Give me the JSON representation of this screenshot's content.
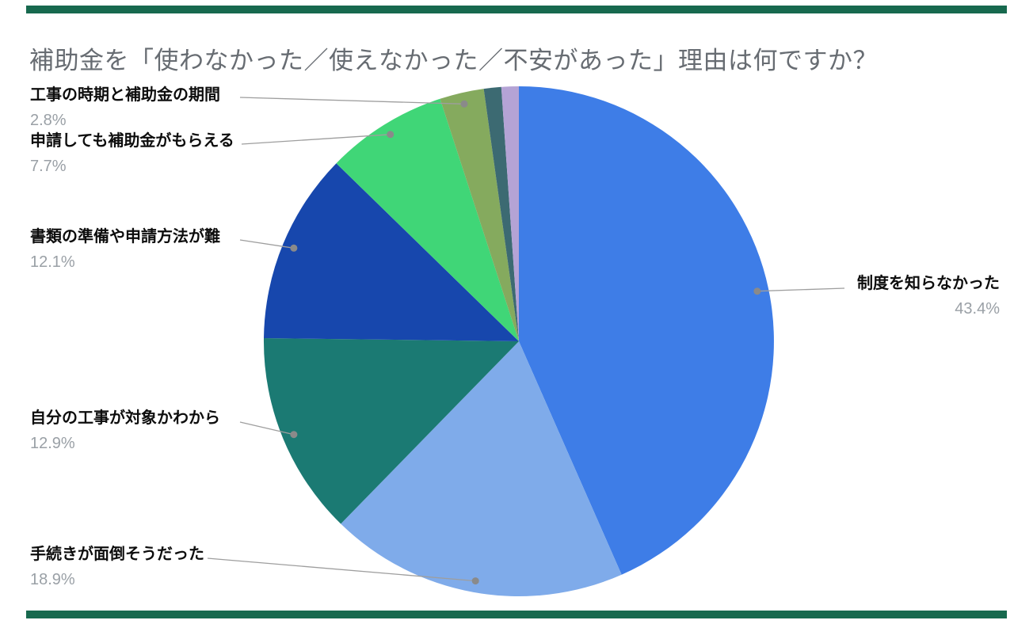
{
  "page": {
    "accent_bar_color": "#17694e",
    "background_color": "#ffffff"
  },
  "chart_data": {
    "type": "pie",
    "title": "補助金を「使わなかった／使えなかった／不安があった」理由は何ですか？",
    "title_color": "#676c72",
    "legend_position": "callout-labels",
    "start_angle_deg": 0,
    "callout_line_color": "#9e9e9e",
    "callout_dot_color": "#8a8a8a",
    "label_color": "#0d0d0d",
    "pct_color": "#9aa0a6",
    "slices": [
      {
        "label": "制度を知らなかった",
        "pct_label": "43.4%",
        "value": 43.4,
        "color": "#3e7de7"
      },
      {
        "label": "手続きが面倒そうだった",
        "pct_label": "18.9%",
        "value": 18.9,
        "color": "#7fabea"
      },
      {
        "label": "自分の工事が対象かわから",
        "pct_label": "12.9%",
        "value": 12.9,
        "color": "#1b7a73"
      },
      {
        "label": "書類の準備や申請方法が難",
        "pct_label": "12.1%",
        "value": 12.1,
        "color": "#1747ad"
      },
      {
        "label": "申請しても補助金がもらえる",
        "pct_label": "7.7%",
        "value": 7.7,
        "color": "#40d677"
      },
      {
        "label": "工事の時期と補助金の期間",
        "pct_label": "2.8%",
        "value": 2.8,
        "color": "#85aa5e"
      },
      {
        "label": "",
        "pct_label": "",
        "value": 1.1,
        "color": "#3c6a72"
      },
      {
        "label": "",
        "pct_label": "",
        "value": 1.1,
        "color": "#b4a3d5"
      }
    ]
  }
}
